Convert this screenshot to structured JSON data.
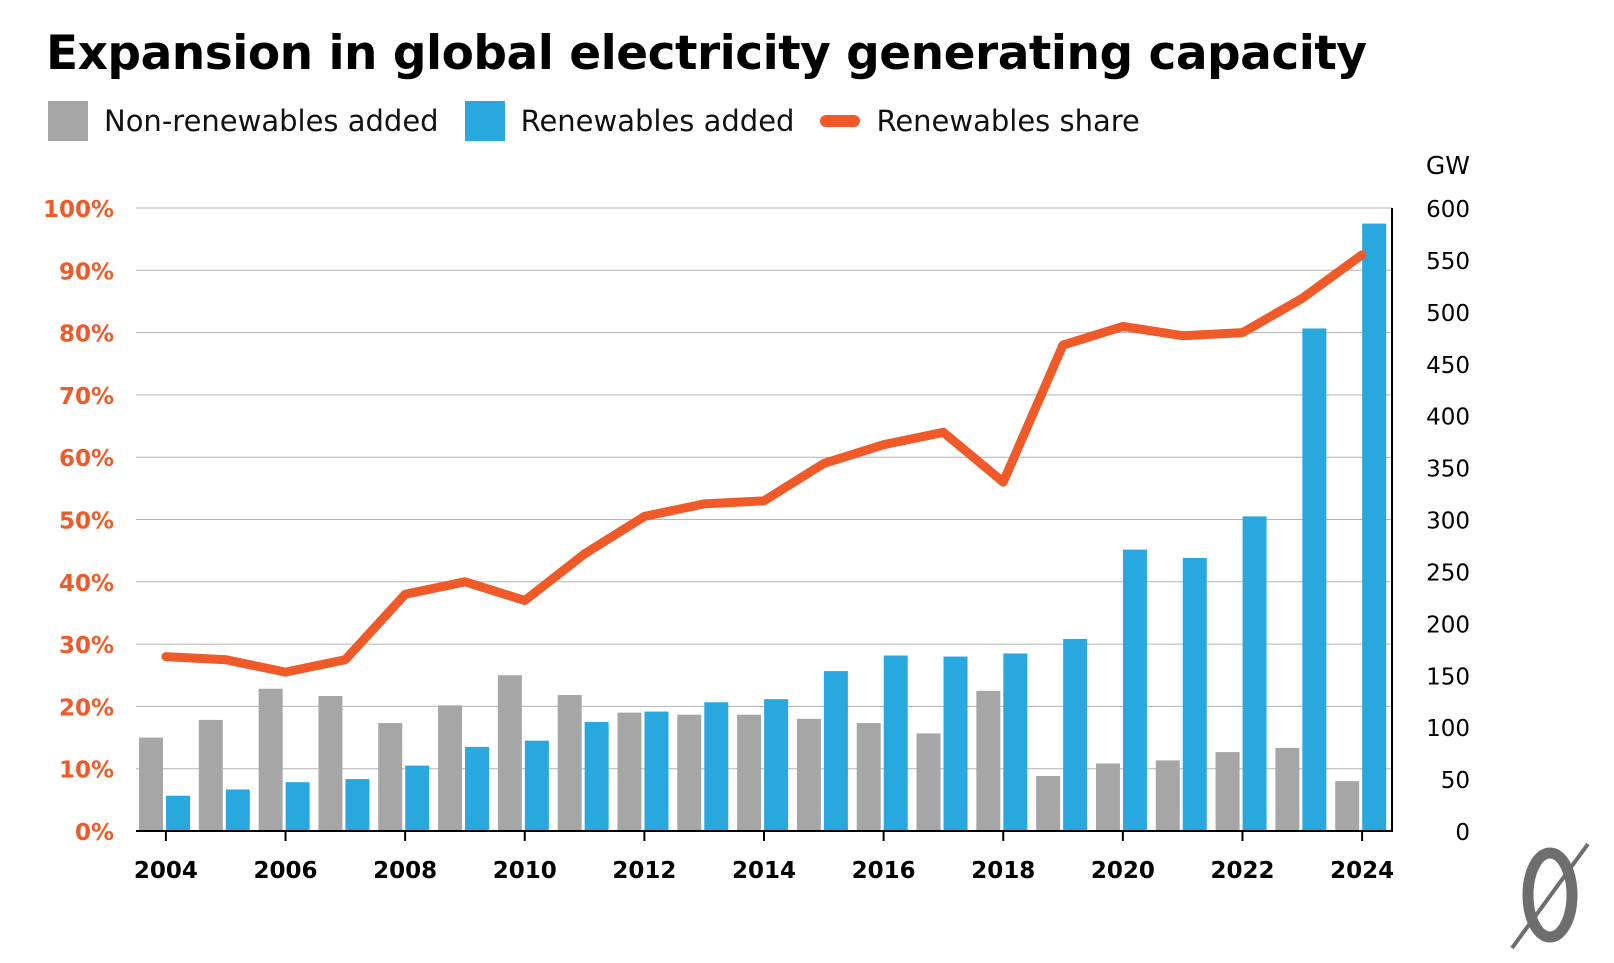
{
  "chart_data": {
    "type": "bar",
    "title": "Expansion in global electricity generating capacity",
    "x": [
      2004,
      2005,
      2006,
      2007,
      2008,
      2009,
      2010,
      2011,
      2012,
      2013,
      2014,
      2015,
      2016,
      2017,
      2018,
      2019,
      2020,
      2021,
      2022,
      2023,
      2024
    ],
    "x_tick_labels": [
      "2004",
      "2006",
      "2008",
      "2010",
      "2012",
      "2014",
      "2016",
      "2018",
      "2020",
      "2022",
      "2024"
    ],
    "series": [
      {
        "name": "Non-renewables added",
        "type": "bar",
        "axis": "right",
        "color": "#a6a6a6",
        "values": [
          90,
          107,
          137,
          130,
          104,
          121,
          150,
          131,
          114,
          112,
          112,
          108,
          104,
          94,
          135,
          53,
          65,
          68,
          76,
          80,
          48
        ]
      },
      {
        "name": "Renewables added",
        "type": "bar",
        "axis": "right",
        "color": "#29a8e0",
        "values": [
          34,
          40,
          47,
          50,
          63,
          81,
          87,
          105,
          115,
          124,
          127,
          154,
          169,
          168,
          171,
          185,
          271,
          263,
          303,
          484,
          585
        ]
      },
      {
        "name": "Renewables share",
        "type": "line",
        "axis": "left",
        "color": "#f05a28",
        "values": [
          0.28,
          0.275,
          0.255,
          0.275,
          0.38,
          0.4,
          0.37,
          0.445,
          0.505,
          0.525,
          0.53,
          0.59,
          0.62,
          0.64,
          0.56,
          0.78,
          0.81,
          0.795,
          0.8,
          0.855,
          0.925
        ]
      }
    ],
    "y_left": {
      "ylim": [
        0,
        1
      ],
      "tick_labels": [
        "0%",
        "10%",
        "20%",
        "30%",
        "40%",
        "50%",
        "60%",
        "70%",
        "80%",
        "90%",
        "100%"
      ],
      "color": "#f05a28"
    },
    "y_right": {
      "label": "GW",
      "ylim": [
        0,
        600
      ],
      "tick_labels": [
        "0",
        "50",
        "100",
        "150",
        "200",
        "250",
        "300",
        "350",
        "400",
        "450",
        "500",
        "550",
        "600"
      ]
    },
    "grid": true,
    "legend_position": "top-left"
  }
}
